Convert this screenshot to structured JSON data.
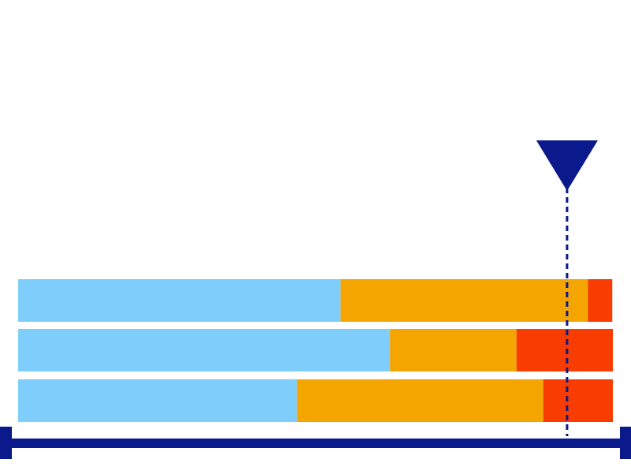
{
  "chart_data": {
    "type": "bar",
    "orientation": "horizontal",
    "stacked": true,
    "categories": [
      null,
      null,
      null
    ],
    "series": [
      {
        "color": "#7fcdfb",
        "values": [
          54.2,
          62.5,
          46.9
        ]
      },
      {
        "color": "#f5a500",
        "values": [
          41.6,
          21.3,
          41.4
        ]
      },
      {
        "color": "#f93c00",
        "values": [
          4.1,
          16.2,
          11.7
        ]
      }
    ],
    "xlim": [
      0,
      100
    ],
    "marker": 92.3,
    "marker_color": "#0a1a8c",
    "axis_color": "#0a1a8c"
  }
}
